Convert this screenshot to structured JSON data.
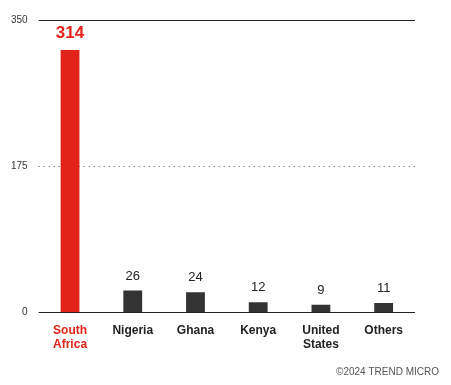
{
  "chart_data": {
    "type": "bar",
    "categories": [
      "South Africa",
      "Nigeria",
      "Ghana",
      "Kenya",
      "United States",
      "Others"
    ],
    "values": [
      314,
      26,
      24,
      12,
      9,
      11
    ],
    "colors": [
      "#e2231a",
      "#333333",
      "#333333",
      "#333333",
      "#333333",
      "#333333"
    ],
    "ylim": [
      0,
      350
    ],
    "yticks": [
      0,
      175,
      350
    ],
    "grid": true,
    "data_labels": true,
    "annotations": [
      "©2024 TREND MICRO"
    ]
  }
}
